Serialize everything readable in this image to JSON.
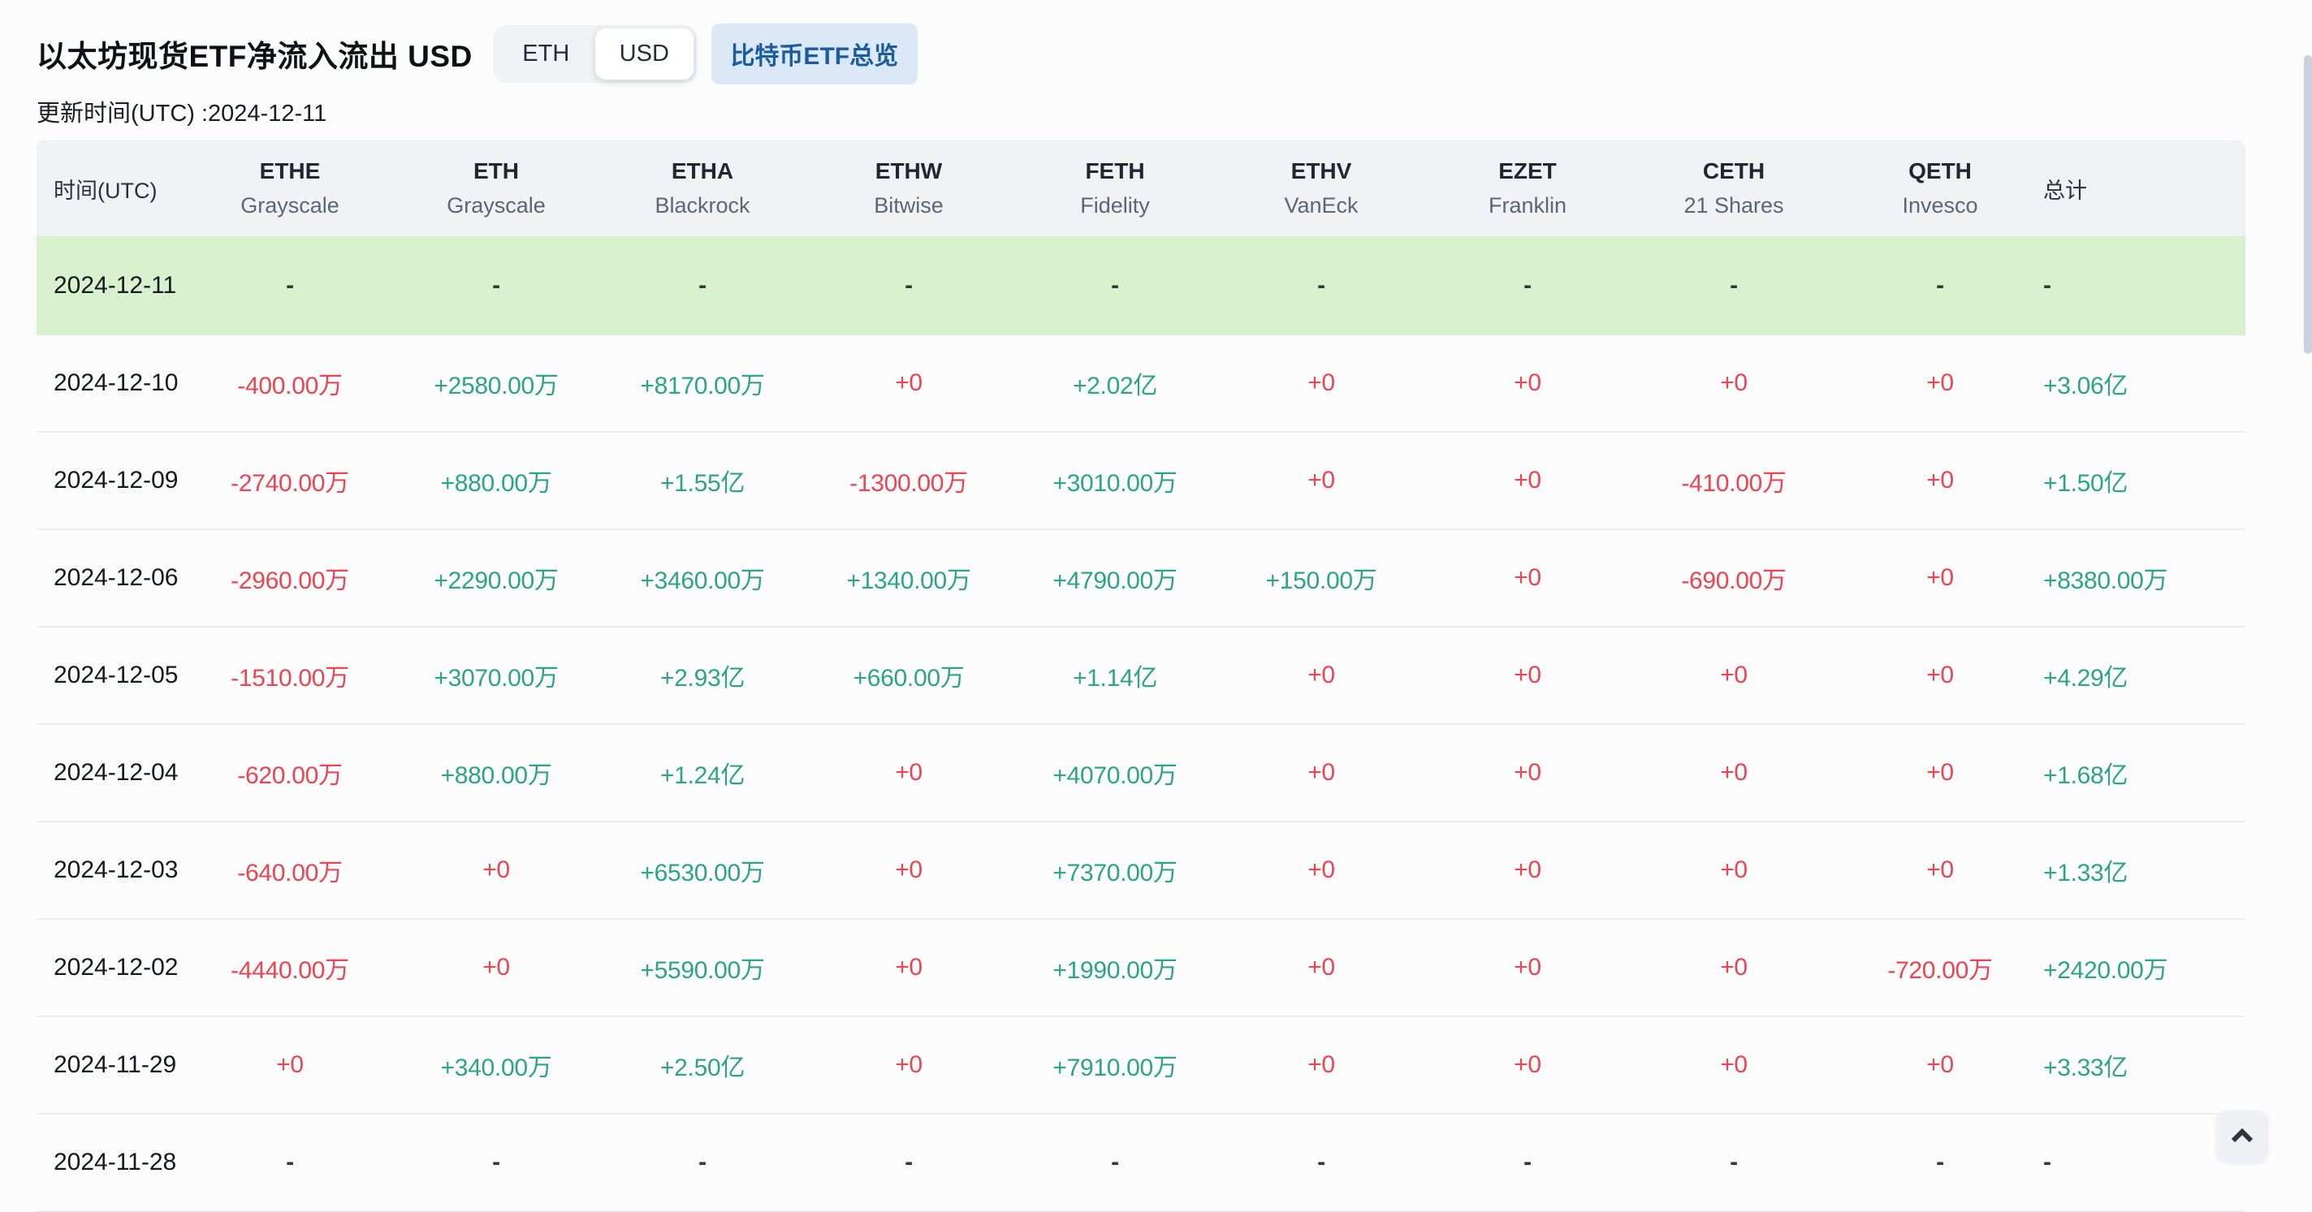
{
  "header": {
    "title": "以太坊现货ETF净流入流出 USD",
    "toggle": {
      "options": [
        "ETH",
        "USD"
      ],
      "selected": "USD"
    },
    "btc_button_label": "比特币ETF总览",
    "updated_text": "更新时间(UTC) :2024-12-11"
  },
  "colors": {
    "positive": "#2BA583",
    "negative": "#EC4450",
    "highlight_row_bg": "#D7F1CD",
    "header_bg": "#F0F1F5",
    "button_bg": "#DBE8F7",
    "button_text": "#1A5C9F"
  },
  "table": {
    "time_header": "时间(UTC)",
    "total_header": "总计",
    "columns": [
      {
        "ticker": "ETHE",
        "issuer": "Grayscale"
      },
      {
        "ticker": "ETH",
        "issuer": "Grayscale"
      },
      {
        "ticker": "ETHA",
        "issuer": "Blackrock"
      },
      {
        "ticker": "ETHW",
        "issuer": "Bitwise"
      },
      {
        "ticker": "FETH",
        "issuer": "Fidelity"
      },
      {
        "ticker": "ETHV",
        "issuer": "VanEck"
      },
      {
        "ticker": "EZET",
        "issuer": "Franklin"
      },
      {
        "ticker": "CETH",
        "issuer": "21 Shares"
      },
      {
        "ticker": "QETH",
        "issuer": "Invesco"
      }
    ],
    "rows": [
      {
        "date": "2024-12-11",
        "highlight": true,
        "cells": [
          "-",
          "-",
          "-",
          "-",
          "-",
          "-",
          "-",
          "-",
          "-"
        ],
        "total": "-"
      },
      {
        "date": "2024-12-10",
        "cells": [
          "-400.00万",
          "+2580.00万",
          "+8170.00万",
          "+0",
          "+2.02亿",
          "+0",
          "+0",
          "+0",
          "+0"
        ],
        "total": "+3.06亿"
      },
      {
        "date": "2024-12-09",
        "cells": [
          "-2740.00万",
          "+880.00万",
          "+1.55亿",
          "-1300.00万",
          "+3010.00万",
          "+0",
          "+0",
          "-410.00万",
          "+0"
        ],
        "total": "+1.50亿"
      },
      {
        "date": "2024-12-06",
        "cells": [
          "-2960.00万",
          "+2290.00万",
          "+3460.00万",
          "+1340.00万",
          "+4790.00万",
          "+150.00万",
          "+0",
          "-690.00万",
          "+0"
        ],
        "total": "+8380.00万"
      },
      {
        "date": "2024-12-05",
        "cells": [
          "-1510.00万",
          "+3070.00万",
          "+2.93亿",
          "+660.00万",
          "+1.14亿",
          "+0",
          "+0",
          "+0",
          "+0"
        ],
        "total": "+4.29亿"
      },
      {
        "date": "2024-12-04",
        "cells": [
          "-620.00万",
          "+880.00万",
          "+1.24亿",
          "+0",
          "+4070.00万",
          "+0",
          "+0",
          "+0",
          "+0"
        ],
        "total": "+1.68亿"
      },
      {
        "date": "2024-12-03",
        "cells": [
          "-640.00万",
          "+0",
          "+6530.00万",
          "+0",
          "+7370.00万",
          "+0",
          "+0",
          "+0",
          "+0"
        ],
        "total": "+1.33亿"
      },
      {
        "date": "2024-12-02",
        "cells": [
          "-4440.00万",
          "+0",
          "+5590.00万",
          "+0",
          "+1990.00万",
          "+0",
          "+0",
          "+0",
          "-720.00万"
        ],
        "total": "+2420.00万"
      },
      {
        "date": "2024-11-29",
        "cells": [
          "+0",
          "+340.00万",
          "+2.50亿",
          "+0",
          "+7910.00万",
          "+0",
          "+0",
          "+0",
          "+0"
        ],
        "total": "+3.33亿"
      },
      {
        "date": "2024-11-28",
        "highlight": false,
        "cells": [
          "-",
          "-",
          "-",
          "-",
          "-",
          "-",
          "-",
          "-",
          "-"
        ],
        "total": "-"
      }
    ]
  },
  "misc": {
    "scroll_top_icon": "chevron-up"
  }
}
